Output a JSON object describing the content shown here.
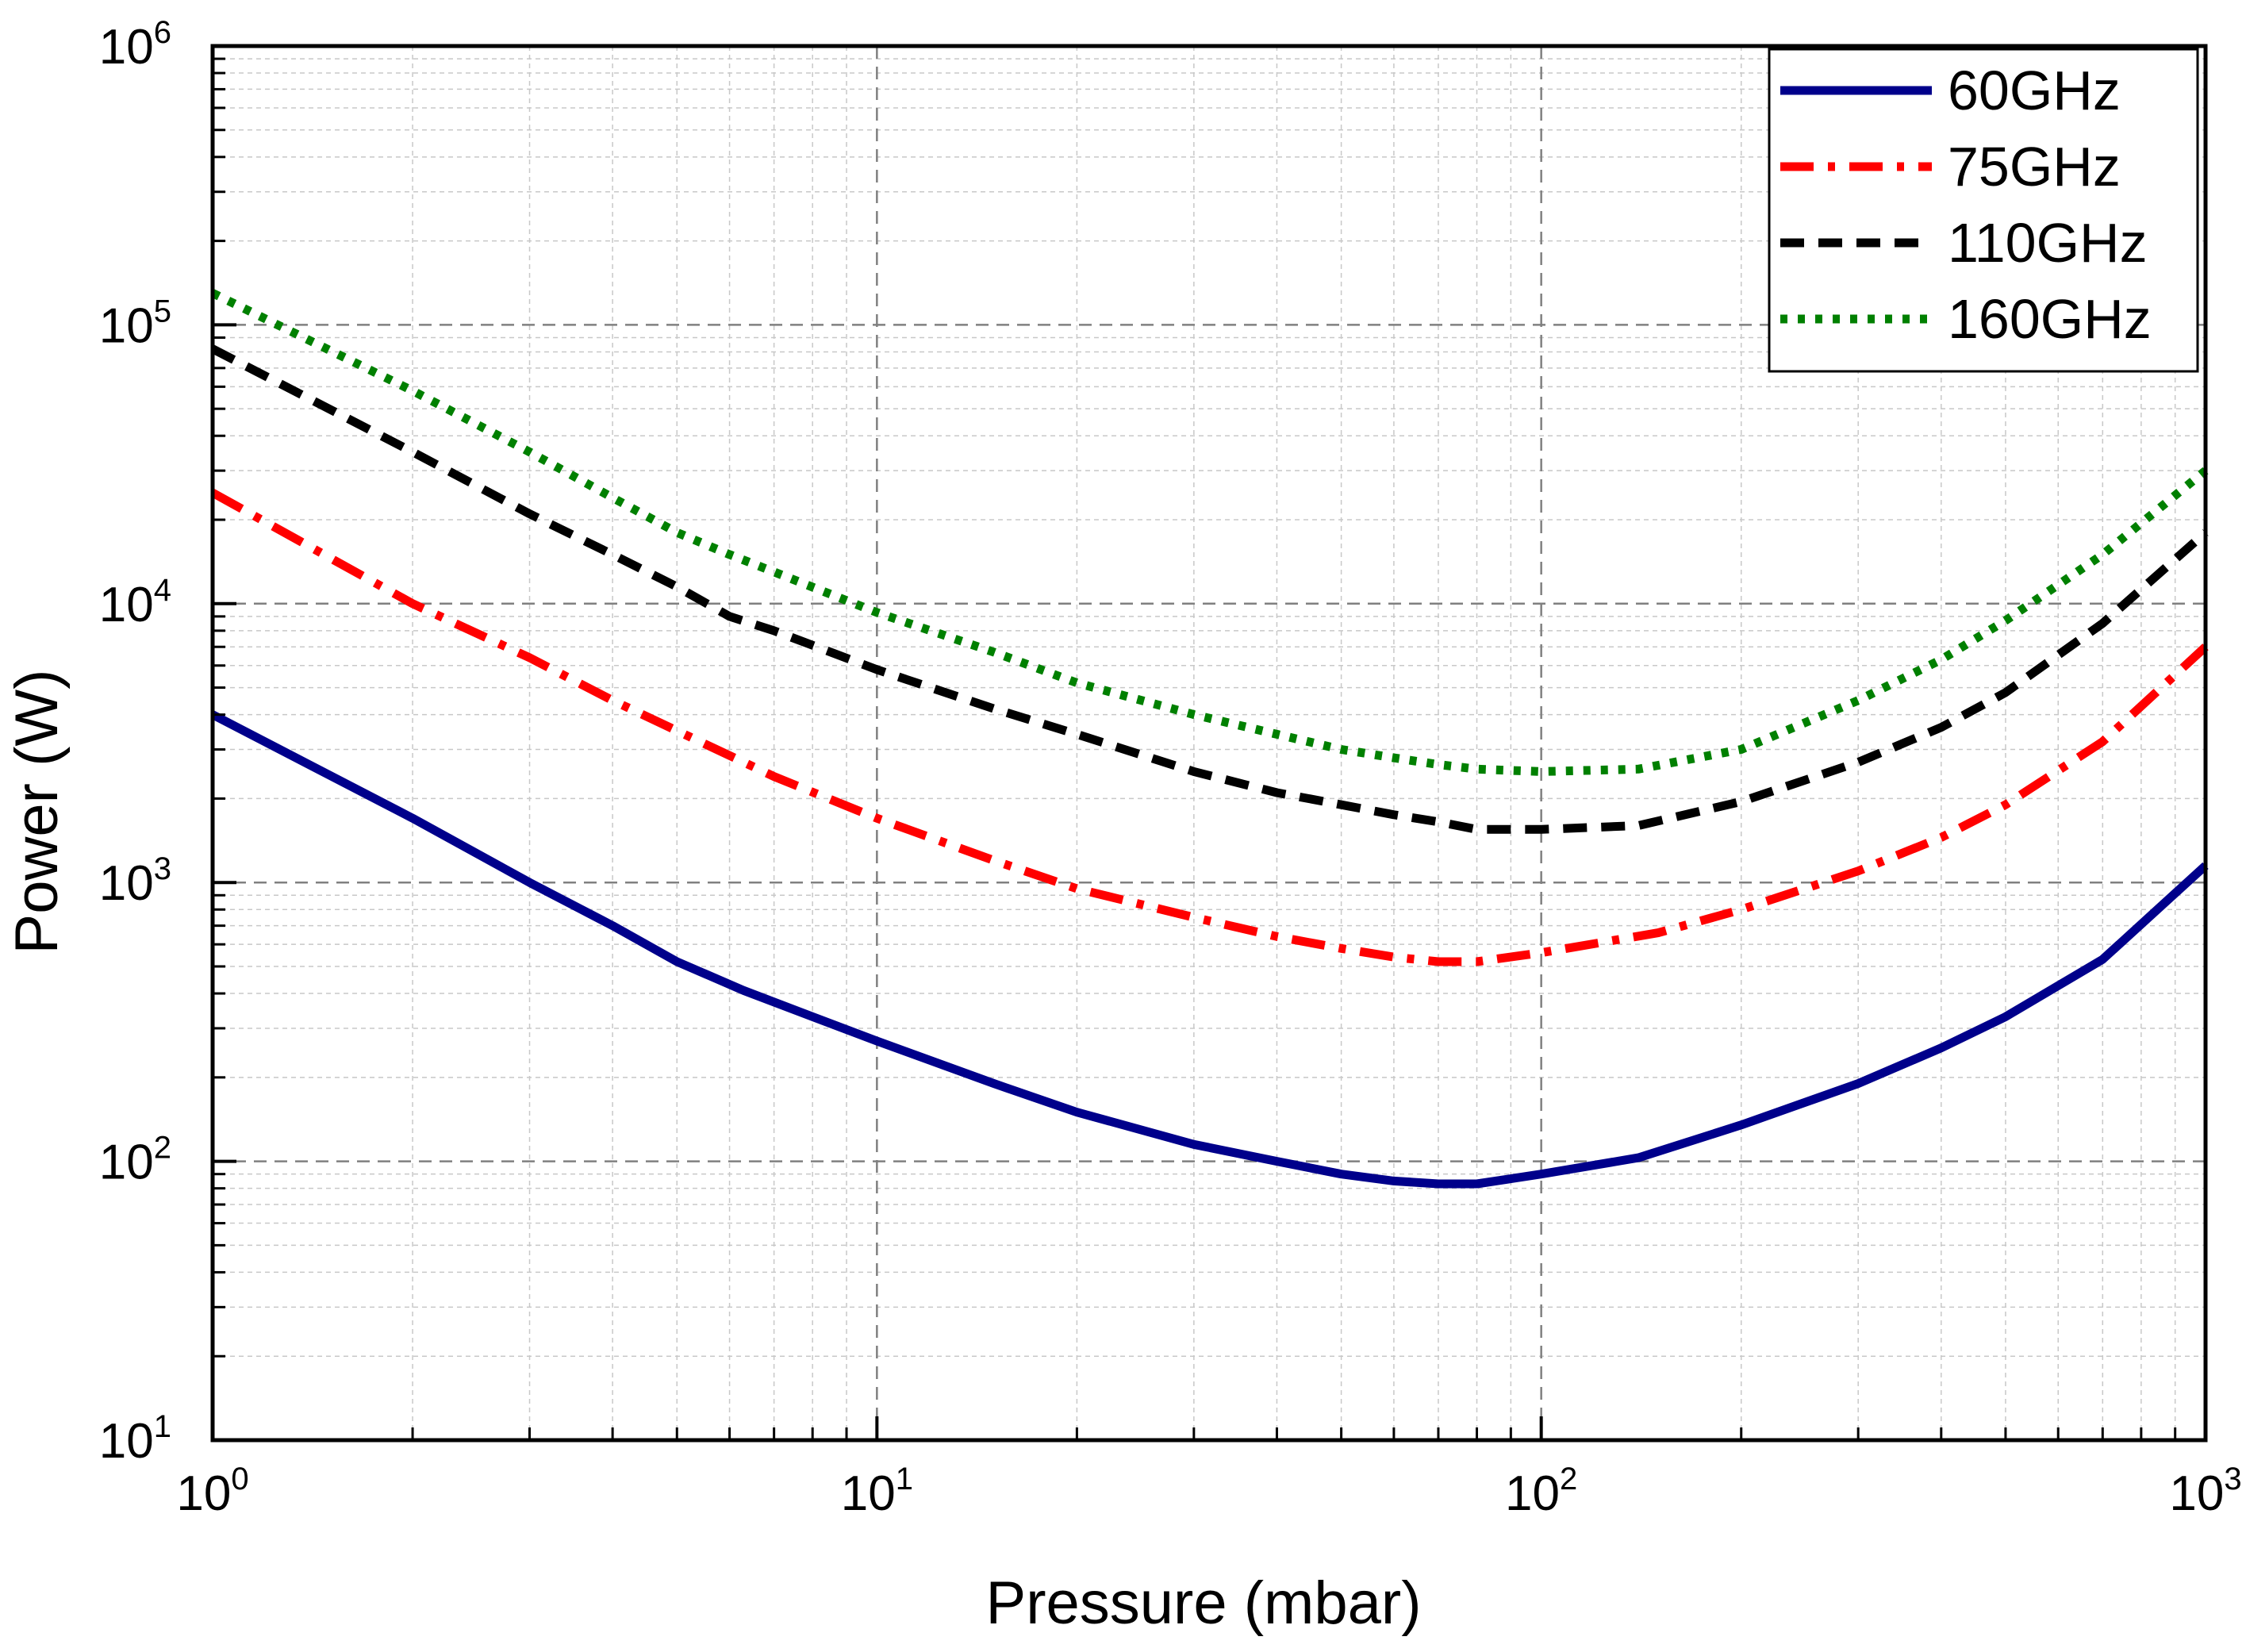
{
  "chart_data": {
    "type": "line",
    "title": "",
    "xlabel": "Pressure (mbar)",
    "ylabel": "Power (W)",
    "xscale": "log",
    "yscale": "log",
    "xlim": [
      1,
      1000
    ],
    "ylim": [
      10,
      1000000
    ],
    "x_ticks": [
      {
        "value": 1,
        "base": "10",
        "exp": "0"
      },
      {
        "value": 10,
        "base": "10",
        "exp": "1"
      },
      {
        "value": 100,
        "base": "10",
        "exp": "2"
      },
      {
        "value": 1000,
        "base": "10",
        "exp": "3"
      }
    ],
    "y_ticks": [
      {
        "value": 10,
        "base": "10",
        "exp": "1"
      },
      {
        "value": 100,
        "base": "10",
        "exp": "2"
      },
      {
        "value": 1000,
        "base": "10",
        "exp": "3"
      },
      {
        "value": 10000,
        "base": "10",
        "exp": "4"
      },
      {
        "value": 100000,
        "base": "10",
        "exp": "5"
      },
      {
        "value": 1000000,
        "base": "10",
        "exp": "6"
      }
    ],
    "grid": true,
    "legend_position": "top-right",
    "series": [
      {
        "name": "60GHz",
        "color": "#00008b",
        "style": "solid",
        "points": [
          [
            1,
            4000
          ],
          [
            2,
            1700
          ],
          [
            3,
            1000
          ],
          [
            4,
            700
          ],
          [
            5,
            520
          ],
          [
            6.3,
            410
          ],
          [
            8,
            330
          ],
          [
            10,
            270
          ],
          [
            15,
            190
          ],
          [
            20,
            150
          ],
          [
            30,
            115
          ],
          [
            40,
            100
          ],
          [
            50,
            90
          ],
          [
            60,
            85
          ],
          [
            70,
            83
          ],
          [
            80,
            83
          ],
          [
            100,
            90
          ],
          [
            140,
            103
          ],
          [
            200,
            135
          ],
          [
            300,
            190
          ],
          [
            400,
            255
          ],
          [
            500,
            330
          ],
          [
            700,
            530
          ],
          [
            1000,
            1150
          ]
        ]
      },
      {
        "name": "75GHz",
        "color": "#ff0000",
        "style": "dashdot",
        "points": [
          [
            1,
            25000
          ],
          [
            2,
            10000
          ],
          [
            3,
            6400
          ],
          [
            4,
            4500
          ],
          [
            5,
            3500
          ],
          [
            7,
            2400
          ],
          [
            10,
            1700
          ],
          [
            15,
            1200
          ],
          [
            20,
            950
          ],
          [
            30,
            750
          ],
          [
            40,
            640
          ],
          [
            50,
            580
          ],
          [
            60,
            540
          ],
          [
            70,
            520
          ],
          [
            80,
            520
          ],
          [
            100,
            560
          ],
          [
            150,
            660
          ],
          [
            200,
            800
          ],
          [
            300,
            1100
          ],
          [
            400,
            1450
          ],
          [
            500,
            1900
          ],
          [
            700,
            3200
          ],
          [
            1000,
            7000
          ]
        ]
      },
      {
        "name": "110GHz",
        "color": "#000000",
        "style": "dashed",
        "points": [
          [
            1,
            82000
          ],
          [
            2,
            35000
          ],
          [
            3,
            21000
          ],
          [
            4,
            15000
          ],
          [
            5,
            11500
          ],
          [
            6,
            9000
          ],
          [
            7,
            8000
          ],
          [
            10,
            5800
          ],
          [
            15,
            4200
          ],
          [
            20,
            3400
          ],
          [
            30,
            2500
          ],
          [
            40,
            2100
          ],
          [
            50,
            1900
          ],
          [
            60,
            1750
          ],
          [
            70,
            1650
          ],
          [
            80,
            1550
          ],
          [
            100,
            1550
          ],
          [
            140,
            1600
          ],
          [
            200,
            1950
          ],
          [
            300,
            2700
          ],
          [
            400,
            3600
          ],
          [
            500,
            4800
          ],
          [
            700,
            8500
          ],
          [
            1000,
            18000
          ]
        ]
      },
      {
        "name": "160GHz",
        "color": "#008000",
        "style": "dotted",
        "points": [
          [
            1,
            130000
          ],
          [
            2,
            58000
          ],
          [
            3,
            35000
          ],
          [
            4,
            24000
          ],
          [
            5,
            18000
          ],
          [
            6,
            15000
          ],
          [
            7,
            13000
          ],
          [
            10,
            9300
          ],
          [
            15,
            6700
          ],
          [
            20,
            5200
          ],
          [
            30,
            4000
          ],
          [
            40,
            3400
          ],
          [
            50,
            3000
          ],
          [
            60,
            2800
          ],
          [
            70,
            2650
          ],
          [
            80,
            2550
          ],
          [
            100,
            2500
          ],
          [
            140,
            2550
          ],
          [
            200,
            3000
          ],
          [
            300,
            4500
          ],
          [
            400,
            6300
          ],
          [
            500,
            8700
          ],
          [
            700,
            15000
          ],
          [
            1000,
            30000
          ]
        ]
      }
    ]
  }
}
